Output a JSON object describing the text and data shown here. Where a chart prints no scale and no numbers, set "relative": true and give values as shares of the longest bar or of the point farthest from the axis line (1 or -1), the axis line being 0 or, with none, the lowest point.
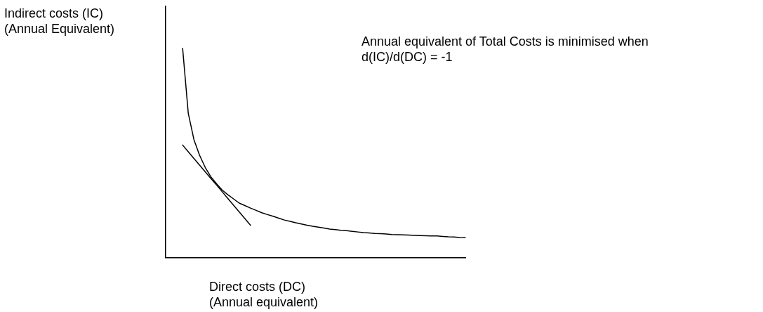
{
  "chart_data": {
    "type": "line",
    "relative": true,
    "xlabel": "Direct costs (DC)\n(Annual equivalent)",
    "ylabel": "Indirect costs (IC)\n(Annual Equivalent)",
    "annotations": [
      "Annual equivalent of Total Costs is minimised when\nd(IC)/d(DC) = -1"
    ],
    "legend": false,
    "marker": "none",
    "line_style": "solid",
    "grid": false,
    "categories": [
      null,
      null,
      null,
      null,
      null,
      null,
      null,
      null,
      null,
      null,
      null,
      null,
      null,
      null,
      null,
      null,
      null,
      null,
      null,
      null,
      null,
      null,
      null,
      null,
      null,
      null,
      null,
      null,
      null,
      null,
      null,
      null,
      null,
      null,
      null,
      null,
      null,
      null,
      null,
      null,
      null,
      null,
      null,
      null,
      null,
      null,
      null,
      null,
      null,
      null,
      null,
      null,
      null,
      null
    ],
    "series": [
      {
        "color": "#000000",
        "values": [
          null,
          null,
          null,
          1.0,
          0.689,
          0.564,
          0.489,
          0.431,
          0.386,
          0.353,
          0.323,
          0.301,
          0.281,
          0.261,
          0.249,
          0.237,
          0.226,
          0.215,
          0.206,
          0.198,
          0.189,
          0.18,
          0.174,
          0.167,
          0.161,
          0.155,
          0.15,
          0.146,
          0.142,
          0.137,
          0.134,
          0.131,
          0.129,
          0.126,
          0.123,
          0.12,
          0.118,
          0.116,
          0.115,
          0.113,
          0.111,
          0.11,
          0.109,
          0.108,
          0.107,
          0.106,
          0.105,
          0.104,
          0.104,
          0.102,
          0.1,
          0.099,
          0.097,
          0.096
        ]
      },
      {
        "color": "#000000",
        "values": [
          null,
          null,
          null,
          0.538,
          0.506,
          0.474,
          0.442,
          0.41,
          0.378,
          0.347,
          0.315,
          0.283,
          0.251,
          0.219,
          0.187,
          0.155,
          null,
          null,
          null,
          null,
          null,
          null,
          null,
          null,
          null,
          null,
          null,
          null,
          null,
          null,
          null,
          null,
          null,
          null,
          null,
          null,
          null,
          null,
          null,
          null,
          null,
          null,
          null,
          null,
          null,
          null,
          null,
          null,
          null,
          null,
          null,
          null,
          null,
          null
        ]
      }
    ]
  }
}
